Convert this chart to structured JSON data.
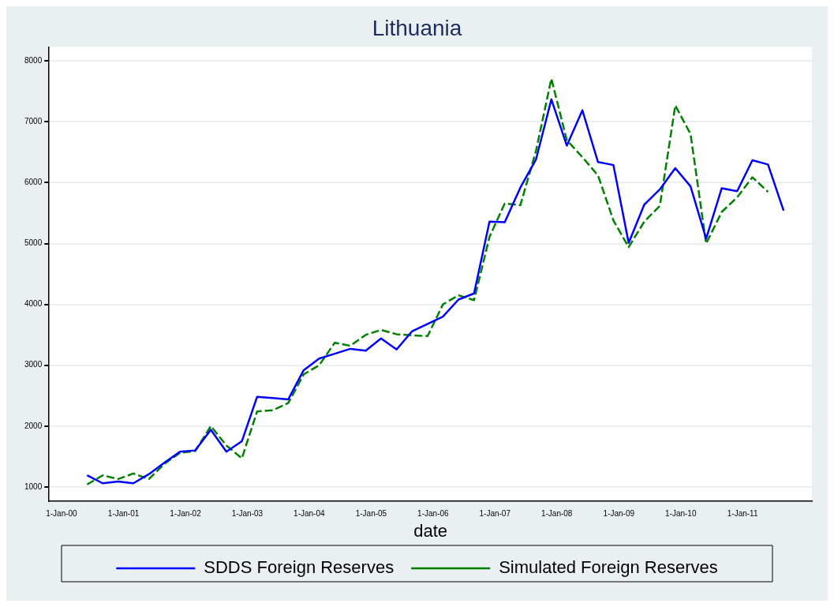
{
  "chart_data": {
    "type": "line",
    "title": "Lithuania",
    "xlabel": "date",
    "x": [
      "2000-05-31",
      "2000-08-31",
      "2000-11-30",
      "2001-02-28",
      "2001-05-31",
      "2001-08-31",
      "2001-11-30",
      "2002-02-28",
      "2002-05-31",
      "2002-08-31",
      "2002-11-30",
      "2003-02-28",
      "2003-05-31",
      "2003-08-31",
      "2003-11-30",
      "2004-02-29",
      "2004-05-31",
      "2004-08-31",
      "2004-11-30",
      "2005-02-28",
      "2005-05-31",
      "2005-08-31",
      "2005-11-30",
      "2006-02-28",
      "2006-05-31",
      "2006-08-31",
      "2006-11-30",
      "2007-02-28",
      "2007-05-31",
      "2007-08-31",
      "2007-11-30",
      "2008-02-29",
      "2008-05-31",
      "2008-08-31",
      "2008-11-30",
      "2009-02-28",
      "2009-05-31",
      "2009-08-31",
      "2009-11-30",
      "2010-02-28",
      "2010-05-31",
      "2010-08-31",
      "2010-11-30",
      "2011-02-28",
      "2011-05-31",
      "2011-08-31"
    ],
    "series": [
      {
        "name": "SDDS Foreign Reserves",
        "color": "#0000ff",
        "line_style": "solid",
        "values": [
          1190,
          1060,
          1090,
          1060,
          1210,
          1400,
          1580,
          1600,
          1940,
          1580,
          1750,
          2480,
          2460,
          2440,
          2920,
          3110,
          3190,
          3270,
          3240,
          3440,
          3260,
          3560,
          3680,
          3800,
          4080,
          4180,
          5360,
          5350,
          5920,
          6380,
          7370,
          6610,
          7190,
          6340,
          6290,
          5010,
          5640,
          5890,
          6240,
          5940,
          5080,
          5910,
          5860,
          6370,
          6300,
          5540
        ]
      },
      {
        "name": "Simulated Foreign Reserves",
        "color": "#008000",
        "line_style": "dashed",
        "values": [
          1040,
          1190,
          1130,
          1220,
          1130,
          1380,
          1560,
          1590,
          2000,
          1680,
          1470,
          2240,
          2260,
          2380,
          2850,
          3000,
          3370,
          3320,
          3500,
          3580,
          3510,
          3490,
          3480,
          4000,
          4150,
          4070,
          5110,
          5660,
          5630,
          6520,
          7710,
          6700,
          6420,
          6120,
          5380,
          4940,
          5360,
          5620,
          7270,
          6800,
          5000,
          5520,
          5760,
          6090,
          5850,
          null
        ]
      }
    ],
    "xlim": [
      "1999-10-20",
      "2012-02-14"
    ],
    "xticks": [
      {
        "value": "2000-01-01",
        "label": "1-Jan-00"
      },
      {
        "value": "2001-01-01",
        "label": "1-Jan-01"
      },
      {
        "value": "2002-01-01",
        "label": "1-Jan-02"
      },
      {
        "value": "2003-01-01",
        "label": "1-Jan-03"
      },
      {
        "value": "2004-01-01",
        "label": "1-Jan-04"
      },
      {
        "value": "2005-01-01",
        "label": "1-Jan-05"
      },
      {
        "value": "2006-01-01",
        "label": "1-Jan-06"
      },
      {
        "value": "2007-01-01",
        "label": "1-Jan-07"
      },
      {
        "value": "2008-01-01",
        "label": "1-Jan-08"
      },
      {
        "value": "2009-01-01",
        "label": "1-Jan-09"
      },
      {
        "value": "2010-01-01",
        "label": "1-Jan-10"
      },
      {
        "value": "2011-01-01",
        "label": "1-Jan-11"
      }
    ],
    "ylim": [
      770,
      8230
    ],
    "yticks": [
      1000,
      2000,
      3000,
      4000,
      5000,
      6000,
      7000,
      8000
    ],
    "grid": "y",
    "legend": "bottom",
    "marker": "none"
  }
}
